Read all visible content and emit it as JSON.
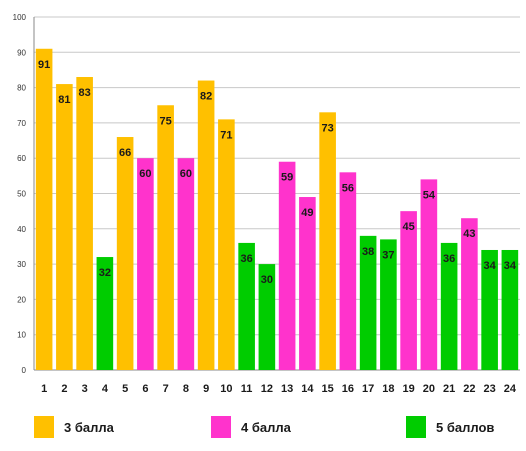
{
  "chart_data": {
    "type": "bar",
    "title": "",
    "xlabel": "",
    "ylabel": "",
    "ylim": [
      0,
      100
    ],
    "yticks": [
      0,
      10,
      20,
      30,
      40,
      50,
      60,
      70,
      80,
      90,
      100
    ],
    "grid": true,
    "legend_position": "bottom",
    "categories": [
      "1",
      "2",
      "3",
      "4",
      "5",
      "6",
      "7",
      "8",
      "9",
      "10",
      "11",
      "12",
      "13",
      "14",
      "15",
      "16",
      "17",
      "18",
      "19",
      "20",
      "21",
      "22",
      "23",
      "24"
    ],
    "values": [
      91,
      81,
      83,
      32,
      66,
      60,
      75,
      60,
      82,
      71,
      36,
      30,
      59,
      49,
      73,
      56,
      38,
      37,
      45,
      54,
      36,
      43,
      34,
      34
    ],
    "groups": [
      0,
      0,
      0,
      2,
      0,
      1,
      0,
      1,
      0,
      0,
      2,
      2,
      1,
      1,
      0,
      1,
      2,
      2,
      1,
      1,
      2,
      1,
      2,
      2
    ],
    "series": [
      {
        "name": "3 балла",
        "color": "#ffc000"
      },
      {
        "name": "4 балла",
        "color": "#ff33cc"
      },
      {
        "name": "5 баллов",
        "color": "#00cc00"
      }
    ]
  }
}
